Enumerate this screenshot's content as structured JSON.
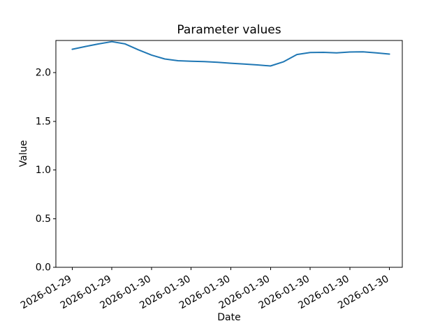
{
  "chart_data": {
    "type": "line",
    "title": "Parameter values",
    "xlabel": "Date",
    "ylabel": "Value",
    "values": [
      2.24,
      2.268,
      2.295,
      2.318,
      2.295,
      2.235,
      2.18,
      2.14,
      2.122,
      2.117,
      2.113,
      2.106,
      2.096,
      2.088,
      2.079,
      2.068,
      2.112,
      2.186,
      2.206,
      2.208,
      2.203,
      2.212,
      2.214,
      2.203,
      2.19
    ],
    "x_tick_labels": [
      "2026-01-29",
      "2026-01-29",
      "2026-01-30",
      "2026-01-30",
      "2026-01-30",
      "2026-01-30",
      "2026-01-30",
      "2026-01-30",
      "2026-01-30"
    ],
    "x_tick_point_indices": [
      0,
      3,
      6,
      9,
      12,
      15,
      18,
      21,
      24
    ],
    "x_tick_rotation_deg": 30,
    "y_tick_labels": [
      "0.0",
      "0.5",
      "1.0",
      "1.5",
      "2.0"
    ],
    "y_tick_values": [
      0,
      0.5,
      1,
      1.5,
      2
    ],
    "ylim": [
      0,
      2.33
    ],
    "grid": false,
    "legend": "none",
    "line_color": "#1f77b4",
    "axis_color": "#000000",
    "background": "#ffffff"
  }
}
